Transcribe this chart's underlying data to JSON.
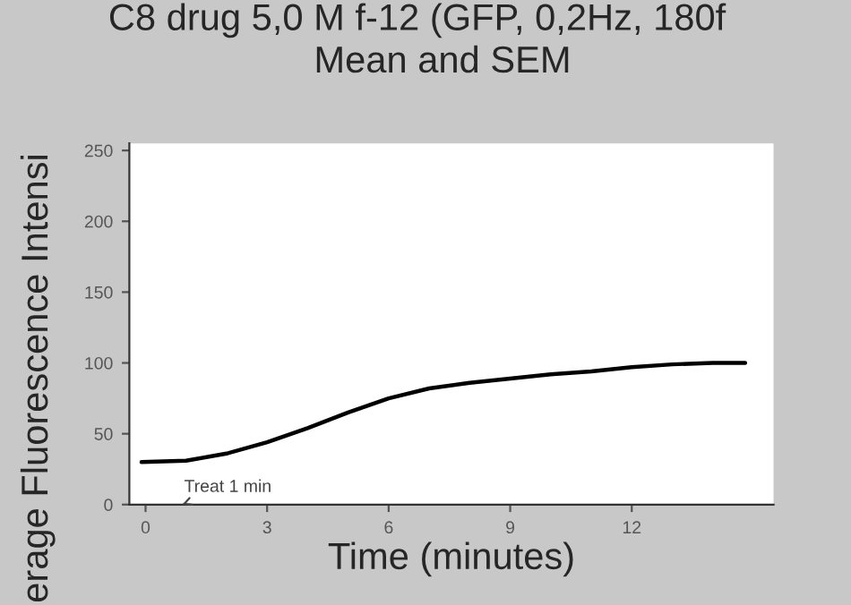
{
  "chart_data": {
    "type": "line",
    "title": "C8 drug 5,0 M f-12 (GFP, 0,2Hz, 180f",
    "subtitle": "Mean and SEM",
    "xlabel": "Time (minutes)",
    "ylabel": "erage Fluorescence Intensi",
    "series": [
      {
        "color": "#000000",
        "x": [
          -0.1,
          1,
          2,
          3,
          4,
          5,
          6,
          7,
          8,
          9,
          10,
          11,
          12,
          13,
          14,
          14.8
        ],
        "values": [
          30,
          31,
          36,
          44,
          54,
          65,
          75,
          82,
          86,
          89,
          92,
          94,
          97,
          99,
          100,
          100
        ]
      }
    ],
    "xlim": [
      -0.4,
      15.5
    ],
    "xticks": [
      0,
      3,
      6,
      9,
      12
    ],
    "ylim": [
      0,
      255
    ],
    "yticks": [
      0,
      50,
      100,
      150,
      200,
      250
    ],
    "annotations": [
      "Treat 1 min"
    ],
    "grid": false,
    "legend": false,
    "marker": "none",
    "line_style": "solid"
  }
}
